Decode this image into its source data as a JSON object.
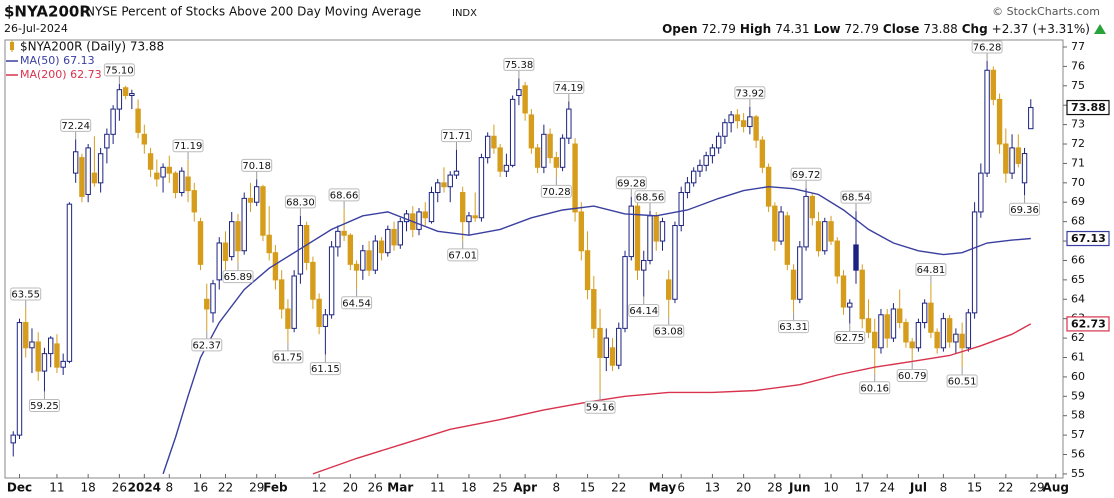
{
  "chart_data": {
    "type": "candlestick",
    "title": "$NYA200R",
    "subtitle": "NYSE Percent of Stocks Above 200 Day Moving Average",
    "exchange": "INDX",
    "date": "26-Jul-2024",
    "credit": "© StockCharts.com",
    "quote": {
      "labels": [
        "Open",
        "High",
        "Low",
        "Close",
        "Chg"
      ],
      "change": {
        "value": 2.37,
        "label": "+2.37"
      },
      "change_pct": {
        "value": 3.31,
        "label": "(+3.31%)"
      }
    },
    "candles": {
      "name": "$NYA200R (Daily) 73.88",
      "up_color": "#1c2380",
      "down_color": "#d69d1c",
      "open": [
        56.6,
        57.0,
        62.8,
        61.5,
        61.8,
        60.3,
        61.2,
        61.7,
        60.5,
        60.8,
        70.5,
        71.3,
        69.4,
        70.5,
        70.0,
        71.8,
        72.5,
        73.8,
        74.9,
        74.5,
        73.8,
        72.5,
        71.5,
        70.5,
        70.3,
        70.8,
        70.5,
        69.5,
        70.3,
        69.6,
        68.0,
        64.0,
        63.3,
        65.0,
        66.9,
        66.2,
        68.0,
        66.5,
        69.2,
        69.0,
        69.8,
        67.3,
        66.4,
        65.0,
        63.5,
        62.5,
        65.3,
        67.8,
        65.9,
        64.0,
        62.6,
        63.2,
        66.7,
        67.5,
        67.3,
        65.8,
        65.5,
        66.5,
        65.5,
        67.0,
        66.4,
        67.6,
        66.8,
        68.0,
        68.4,
        67.6,
        68.5,
        68.0,
        69.5,
        70.0,
        69.8,
        70.4,
        69.5,
        68.0,
        68.3,
        68.2,
        71.3,
        72.4,
        71.8,
        70.6,
        70.9,
        74.5,
        75.0,
        73.5,
        71.8,
        70.8,
        72.5,
        71.3,
        70.8,
        72.3,
        72.0,
        68.5,
        66.5,
        64.5,
        62.5,
        61.0,
        61.5,
        60.6,
        62.5,
        66.2,
        68.8,
        65.5,
        66.0,
        68.3,
        67.0,
        65.0,
        64.0,
        67.8,
        69.5,
        70.0,
        70.6,
        70.9,
        71.4,
        71.8,
        72.4,
        73.1,
        73.5,
        73.2,
        72.9,
        73.4,
        72.2,
        70.8,
        68.8,
        67.0,
        68.3,
        65.5,
        64.0,
        66.7,
        69.3,
        68.0,
        66.5,
        68.0,
        67.0,
        65.2,
        63.6,
        66.8,
        65.5,
        63.0,
        62.3,
        61.5,
        63.2,
        62.0,
        63.5,
        62.8,
        61.8,
        61.5,
        62.8,
        63.8,
        62.3,
        61.5,
        63.0,
        61.8,
        62.2,
        61.5,
        63.3,
        68.5,
        70.5,
        75.8,
        74.3,
        72.0,
        70.5,
        71.8,
        70.0,
        72.79
      ],
      "high": [
        57.2,
        63.0,
        63.55,
        62.5,
        62.3,
        61.5,
        62.1,
        62.2,
        61.2,
        69.0,
        72.24,
        71.5,
        72.0,
        72.4,
        71.8,
        72.8,
        74.0,
        75.1,
        75.0,
        74.8,
        74.3,
        73.0,
        71.8,
        71.2,
        71.0,
        71.4,
        70.6,
        70.8,
        71.19,
        70.0,
        68.2,
        64.8,
        65.0,
        67.2,
        67.5,
        68.5,
        68.4,
        69.5,
        70.0,
        70.18,
        69.9,
        68.8,
        66.8,
        65.5,
        64.0,
        65.5,
        68.3,
        68.0,
        66.2,
        64.3,
        63.5,
        67.0,
        67.8,
        68.66,
        67.4,
        66.0,
        66.8,
        67.0,
        67.3,
        67.2,
        67.8,
        68.0,
        68.2,
        68.6,
        68.8,
        68.7,
        69.0,
        69.8,
        70.2,
        70.8,
        70.6,
        71.71,
        69.8,
        68.5,
        69.5,
        71.5,
        72.6,
        73.0,
        72.0,
        71.5,
        74.5,
        75.38,
        75.2,
        73.8,
        72.0,
        73.0,
        72.8,
        71.6,
        72.5,
        74.19,
        72.3,
        69.0,
        67.5,
        65.2,
        63.5,
        62.5,
        62.0,
        62.8,
        66.5,
        69.28,
        69.0,
        66.5,
        68.56,
        68.5,
        68.2,
        65.5,
        68.0,
        69.8,
        70.3,
        70.8,
        71.2,
        71.6,
        72.0,
        72.6,
        73.3,
        73.7,
        73.8,
        73.6,
        73.92,
        73.5,
        72.4,
        71.0,
        69.0,
        68.8,
        68.5,
        65.8,
        67.0,
        69.72,
        69.5,
        68.5,
        68.2,
        68.3,
        67.2,
        65.5,
        64.0,
        68.54,
        65.8,
        64.0,
        63.0,
        63.5,
        63.5,
        63.8,
        64.5,
        63.0,
        62.0,
        63.0,
        64.0,
        64.81,
        62.5,
        63.3,
        63.2,
        62.5,
        62.8,
        63.5,
        69.0,
        71.0,
        76.28,
        76.0,
        74.6,
        72.8,
        72.5,
        72.5,
        71.8,
        74.31
      ],
      "low": [
        55.9,
        56.8,
        61.0,
        60.2,
        59.8,
        59.25,
        60.5,
        60.2,
        60.1,
        60.7,
        70.0,
        69.0,
        69.0,
        69.8,
        69.5,
        71.0,
        72.0,
        73.2,
        74.3,
        73.8,
        72.3,
        71.5,
        70.3,
        69.8,
        69.5,
        70.0,
        69.2,
        69.3,
        69.0,
        68.0,
        65.5,
        62.37,
        62.8,
        64.5,
        65.5,
        66.0,
        65.89,
        66.3,
        68.5,
        68.8,
        67.0,
        66.0,
        64.5,
        63.0,
        61.75,
        62.3,
        64.8,
        65.5,
        63.5,
        62.2,
        61.15,
        63.0,
        66.2,
        67.0,
        65.5,
        64.54,
        65.0,
        65.2,
        65.3,
        66.0,
        66.2,
        66.5,
        66.6,
        67.5,
        67.2,
        67.3,
        67.8,
        67.9,
        69.0,
        69.5,
        69.0,
        70.2,
        67.01,
        67.3,
        68.0,
        68.0,
        71.0,
        71.5,
        70.3,
        70.3,
        70.8,
        74.0,
        73.2,
        71.5,
        70.5,
        70.5,
        71.0,
        70.28,
        70.6,
        72.0,
        68.0,
        66.0,
        64.0,
        62.0,
        59.16,
        60.3,
        60.3,
        60.4,
        62.3,
        66.0,
        65.0,
        64.14,
        65.8,
        66.5,
        66.5,
        63.08,
        63.8,
        67.5,
        69.2,
        69.8,
        70.3,
        70.6,
        71.0,
        71.5,
        72.0,
        72.6,
        72.8,
        72.6,
        72.5,
        71.8,
        70.5,
        68.5,
        66.5,
        66.8,
        65.5,
        63.31,
        63.8,
        66.5,
        67.8,
        66.2,
        66.3,
        66.8,
        64.8,
        63.2,
        62.75,
        64.8,
        62.5,
        62.0,
        60.16,
        61.2,
        61.5,
        61.8,
        62.5,
        61.5,
        60.79,
        61.3,
        62.5,
        62.0,
        61.2,
        61.3,
        61.5,
        61.2,
        60.51,
        61.3,
        63.0,
        68.2,
        70.3,
        74.0,
        71.5,
        70.0,
        70.2,
        70.8,
        69.36,
        72.79
      ],
      "close": [
        57.0,
        62.8,
        61.5,
        61.8,
        60.3,
        61.2,
        62.0,
        60.5,
        60.8,
        68.9,
        71.6,
        69.3,
        71.8,
        70.0,
        71.5,
        72.5,
        73.8,
        74.8,
        74.5,
        74.6,
        72.6,
        72.0,
        70.7,
        70.2,
        70.8,
        70.5,
        69.5,
        70.6,
        69.6,
        68.5,
        65.8,
        63.5,
        64.8,
        66.9,
        66.0,
        68.0,
        66.5,
        69.2,
        69.0,
        69.8,
        67.3,
        66.4,
        65.0,
        63.5,
        62.5,
        65.2,
        67.8,
        65.9,
        64.0,
        62.6,
        63.2,
        66.7,
        67.5,
        67.3,
        65.8,
        65.5,
        66.5,
        65.5,
        67.0,
        66.4,
        67.6,
        66.8,
        68.0,
        68.4,
        67.6,
        68.5,
        68.2,
        69.5,
        70.0,
        69.8,
        70.4,
        70.6,
        68.0,
        68.3,
        68.2,
        71.3,
        72.4,
        71.8,
        70.6,
        70.9,
        74.3,
        74.8,
        73.6,
        71.8,
        70.8,
        72.5,
        71.3,
        70.8,
        72.3,
        73.8,
        68.5,
        66.5,
        64.5,
        62.5,
        61.0,
        62.0,
        60.6,
        62.5,
        66.2,
        68.8,
        65.5,
        66.0,
        68.3,
        67.0,
        68.0,
        64.0,
        67.8,
        69.5,
        70.0,
        70.6,
        70.9,
        71.4,
        71.8,
        72.4,
        73.1,
        73.5,
        73.2,
        72.9,
        73.4,
        72.2,
        70.8,
        68.8,
        67.0,
        68.5,
        65.8,
        64.0,
        66.7,
        69.3,
        68.2,
        66.5,
        68.0,
        67.0,
        65.2,
        63.6,
        63.8,
        65.5,
        63.0,
        62.3,
        61.5,
        63.2,
        62.0,
        63.5,
        62.8,
        61.8,
        61.5,
        62.8,
        63.8,
        62.3,
        61.5,
        63.0,
        61.8,
        62.2,
        61.5,
        63.3,
        68.5,
        70.5,
        75.8,
        74.3,
        72.0,
        70.5,
        71.8,
        71.0,
        71.51,
        73.88
      ]
    },
    "overlays": [
      {
        "name": "MA(50) 67.13",
        "color": "#3a3f9f",
        "x": [
          24,
          26,
          28,
          30,
          33,
          37,
          41,
          46,
          51,
          56,
          60,
          64,
          68,
          73,
          78,
          83,
          88,
          93,
          98,
          103,
          108,
          113,
          117,
          121,
          125,
          129,
          133,
          137,
          141,
          145,
          149,
          152,
          156,
          160,
          163
        ],
        "values": [
          55.0,
          56.9,
          59.0,
          61.0,
          62.8,
          64.5,
          65.6,
          66.6,
          67.6,
          68.3,
          68.5,
          68.0,
          67.5,
          67.3,
          67.6,
          68.2,
          68.6,
          68.8,
          68.4,
          68.3,
          68.6,
          69.2,
          69.6,
          69.8,
          69.7,
          69.4,
          68.6,
          67.6,
          66.9,
          66.5,
          66.3,
          66.4,
          66.9,
          67.05,
          67.13
        ]
      },
      {
        "name": "MA(200) 62.73",
        "color": "#d8324c",
        "x": [
          48,
          55,
          62,
          70,
          78,
          85,
          92,
          98,
          105,
          112,
          119,
          126,
          132,
          138,
          144,
          150,
          155,
          160,
          163
        ],
        "values": [
          55.0,
          55.8,
          56.5,
          57.3,
          57.8,
          58.3,
          58.7,
          59.0,
          59.2,
          59.2,
          59.3,
          59.6,
          60.1,
          60.5,
          60.8,
          61.1,
          61.6,
          62.2,
          62.73
        ]
      }
    ],
    "annotations": [
      {
        "x": 2,
        "value": 63.55
      },
      {
        "x": 5,
        "value": 59.25
      },
      {
        "x": 10,
        "value": 72.24
      },
      {
        "x": 17,
        "value": 75.1,
        "label": "75.10"
      },
      {
        "x": 28,
        "value": 71.19
      },
      {
        "x": 31,
        "value": 62.37
      },
      {
        "x": 36,
        "value": 65.89
      },
      {
        "x": 39,
        "value": 70.18
      },
      {
        "x": 44,
        "value": 61.75
      },
      {
        "x": 46,
        "value": 68.3,
        "label": "68.30"
      },
      {
        "x": 50,
        "value": 61.15
      },
      {
        "x": 53,
        "value": 68.66
      },
      {
        "x": 55,
        "value": 64.54
      },
      {
        "x": 71,
        "value": 71.71
      },
      {
        "x": 72,
        "value": 67.01
      },
      {
        "x": 81,
        "value": 75.38
      },
      {
        "x": 87,
        "value": 70.28
      },
      {
        "x": 89,
        "value": 74.19
      },
      {
        "x": 94,
        "value": 59.16
      },
      {
        "x": 99,
        "value": 69.28
      },
      {
        "x": 101,
        "value": 64.14
      },
      {
        "x": 102,
        "value": 68.56
      },
      {
        "x": 105,
        "value": 63.08
      },
      {
        "x": 118,
        "value": 73.92
      },
      {
        "x": 125,
        "value": 63.31
      },
      {
        "x": 127,
        "value": 69.72
      },
      {
        "x": 134,
        "value": 62.75
      },
      {
        "x": 135,
        "value": 68.54
      },
      {
        "x": 138,
        "value": 60.16
      },
      {
        "x": 144,
        "value": 60.79
      },
      {
        "x": 147,
        "value": 64.81
      },
      {
        "x": 152,
        "value": 60.51
      },
      {
        "x": 156,
        "value": 76.28
      },
      {
        "x": 162,
        "value": 69.36
      }
    ],
    "ylim": [
      54.79,
      77.36
    ],
    "yticks": [
      55,
      56,
      57,
      58,
      59,
      60,
      61,
      62,
      63,
      64,
      65,
      66,
      67,
      68,
      69,
      70,
      71,
      72,
      73,
      74,
      75,
      76,
      77
    ],
    "xlim": [
      -1,
      168
    ],
    "xticks": [
      {
        "value": 1,
        "label": "Dec"
      },
      {
        "value": 7,
        "label": "11"
      },
      {
        "value": 12,
        "label": "18"
      },
      {
        "value": 17,
        "label": "26"
      },
      {
        "value": 21,
        "label": "2024"
      },
      {
        "value": 25,
        "label": "8"
      },
      {
        "value": 30,
        "label": "16"
      },
      {
        "value": 34,
        "label": "22"
      },
      {
        "value": 39,
        "label": "29"
      },
      {
        "value": 42,
        "label": "Feb"
      },
      {
        "value": 49,
        "label": "12"
      },
      {
        "value": 54,
        "label": "20"
      },
      {
        "value": 58,
        "label": "26"
      },
      {
        "value": 62,
        "label": "Mar"
      },
      {
        "value": 68,
        "label": "11"
      },
      {
        "value": 73,
        "label": "18"
      },
      {
        "value": 78,
        "label": "25"
      },
      {
        "value": 82,
        "label": "Apr"
      },
      {
        "value": 87,
        "label": "8"
      },
      {
        "value": 92,
        "label": "15"
      },
      {
        "value": 97,
        "label": "22"
      },
      {
        "value": 104,
        "label": "May"
      },
      {
        "value": 107,
        "label": "6"
      },
      {
        "value": 112,
        "label": "13"
      },
      {
        "value": 117,
        "label": "20"
      },
      {
        "value": 122,
        "label": "28"
      },
      {
        "value": 126,
        "label": "Jun"
      },
      {
        "value": 131,
        "label": "10"
      },
      {
        "value": 136,
        "label": "17"
      },
      {
        "value": 140,
        "label": "24"
      },
      {
        "value": 145,
        "label": "Jul"
      },
      {
        "value": 149,
        "label": "8"
      },
      {
        "value": 154,
        "label": "15"
      },
      {
        "value": 159,
        "label": "22"
      },
      {
        "value": 164,
        "label": "29"
      },
      {
        "value": 167,
        "label": "Aug"
      }
    ],
    "grid": false
  }
}
